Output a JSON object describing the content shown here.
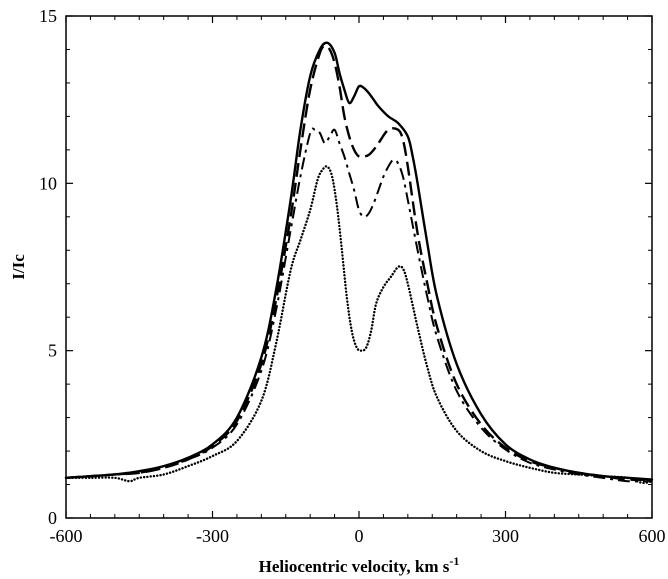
{
  "chart_data": {
    "type": "line",
    "xlabel": "Heliocentric velocity, km s",
    "xlabel_sup": "-1",
    "ylabel": "I/Ic",
    "xlim": [
      -600,
      600
    ],
    "ylim": [
      0,
      15
    ],
    "xticks": [
      -600,
      -300,
      0,
      300,
      600
    ],
    "yticks": [
      0,
      5,
      10,
      15
    ],
    "grid": false,
    "legend": "none",
    "series": [
      {
        "style": "solid",
        "x": [
          -600,
          -550,
          -500,
          -450,
          -400,
          -350,
          -300,
          -250,
          -200,
          -170,
          -140,
          -120,
          -100,
          -80,
          -65,
          -50,
          -40,
          -30,
          -20,
          -10,
          0,
          10,
          20,
          30,
          40,
          60,
          80,
          100,
          110,
          120,
          140,
          160,
          200,
          250,
          300,
          350,
          400,
          450,
          500,
          550,
          600
        ],
        "y": [
          1.2,
          1.25,
          1.3,
          1.4,
          1.55,
          1.8,
          2.2,
          3.0,
          4.8,
          6.8,
          9.5,
          11.6,
          13.2,
          14.0,
          14.2,
          13.9,
          13.3,
          12.8,
          12.4,
          12.6,
          12.9,
          12.85,
          12.7,
          12.5,
          12.3,
          12.0,
          11.8,
          11.4,
          10.8,
          10.0,
          8.2,
          6.6,
          4.6,
          3.1,
          2.2,
          1.75,
          1.5,
          1.35,
          1.25,
          1.2,
          1.15
        ]
      },
      {
        "style": "dashed",
        "x": [
          -600,
          -550,
          -500,
          -450,
          -400,
          -350,
          -300,
          -250,
          -200,
          -170,
          -140,
          -120,
          -100,
          -80,
          -70,
          -60,
          -50,
          -40,
          -30,
          -20,
          -10,
          0,
          10,
          20,
          30,
          40,
          60,
          80,
          90,
          100,
          120,
          140,
          160,
          200,
          250,
          300,
          350,
          400,
          450,
          500,
          550,
          600
        ],
        "y": [
          1.2,
          1.25,
          1.3,
          1.35,
          1.5,
          1.75,
          2.15,
          2.9,
          4.6,
          6.5,
          9.0,
          11.0,
          12.8,
          13.9,
          14.1,
          14.0,
          13.6,
          12.9,
          12.0,
          11.4,
          11.0,
          10.8,
          10.8,
          10.85,
          11.0,
          11.2,
          11.6,
          11.6,
          11.3,
          10.5,
          8.5,
          7.0,
          5.7,
          4.0,
          2.8,
          2.1,
          1.7,
          1.5,
          1.35,
          1.25,
          1.15,
          1.15
        ]
      },
      {
        "style": "dash-dot",
        "x": [
          -600,
          -550,
          -500,
          -450,
          -400,
          -350,
          -300,
          -250,
          -200,
          -170,
          -140,
          -120,
          -100,
          -90,
          -80,
          -70,
          -60,
          -50,
          -40,
          -30,
          -20,
          -10,
          0,
          10,
          20,
          30,
          40,
          50,
          60,
          70,
          80,
          90,
          100,
          120,
          140,
          160,
          200,
          250,
          300,
          350,
          400,
          450,
          500,
          550,
          600
        ],
        "y": [
          1.2,
          1.25,
          1.3,
          1.35,
          1.5,
          1.75,
          2.1,
          2.8,
          4.4,
          6.2,
          8.6,
          10.2,
          11.5,
          11.6,
          11.5,
          11.2,
          11.4,
          11.6,
          11.2,
          10.8,
          10.3,
          9.8,
          9.2,
          9.0,
          9.1,
          9.4,
          9.8,
          10.2,
          10.5,
          10.7,
          10.6,
          10.2,
          9.5,
          8.0,
          6.6,
          5.4,
          3.8,
          2.7,
          2.05,
          1.65,
          1.45,
          1.3,
          1.2,
          1.1,
          1.1
        ]
      },
      {
        "style": "dotted",
        "x": [
          -600,
          -550,
          -500,
          -470,
          -450,
          -400,
          -350,
          -300,
          -250,
          -200,
          -170,
          -140,
          -120,
          -100,
          -85,
          -75,
          -65,
          -55,
          -45,
          -35,
          -25,
          -15,
          -5,
          5,
          15,
          25,
          35,
          50,
          65,
          80,
          90,
          100,
          120,
          140,
          160,
          200,
          250,
          300,
          350,
          400,
          450,
          500,
          550,
          580,
          600
        ],
        "y": [
          1.2,
          1.2,
          1.2,
          1.1,
          1.2,
          1.3,
          1.55,
          1.85,
          2.3,
          3.5,
          5.2,
          7.4,
          8.3,
          9.2,
          10.1,
          10.4,
          10.5,
          10.2,
          9.3,
          8.0,
          6.6,
          5.6,
          5.1,
          5.0,
          5.1,
          5.6,
          6.4,
          6.9,
          7.2,
          7.5,
          7.45,
          7.0,
          5.7,
          4.5,
          3.6,
          2.6,
          2.0,
          1.7,
          1.5,
          1.35,
          1.3,
          1.25,
          1.2,
          1.05,
          1.1
        ]
      }
    ]
  }
}
